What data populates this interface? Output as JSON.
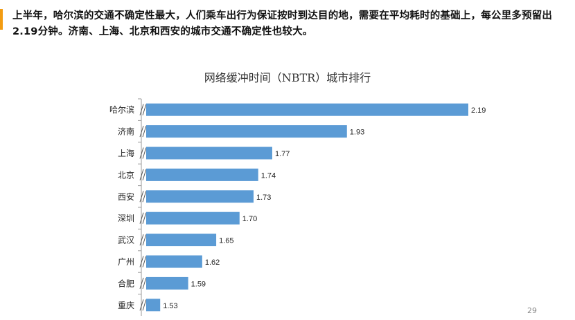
{
  "intro_text": "上半年，哈尔滨的交通不确定性最大，人们乘车出行为保证按时到达目的地，需要在平均耗时的基础上，每公里多预留出2.19分钟。济南、上海、北京和西安的城市交通不确定性也较大。",
  "page_number": "29",
  "colors": {
    "accent": "#f39c12",
    "bar": "#5b9bd5"
  },
  "chart_data": {
    "type": "bar",
    "orientation": "horizontal",
    "title": "网络缓冲时间（NBTR）城市排行",
    "xlabel": "",
    "ylabel": "",
    "axis_break": true,
    "categories": [
      "哈尔滨",
      "济南",
      "上海",
      "北京",
      "西安",
      "深圳",
      "武汉",
      "广州",
      "合肥",
      "重庆"
    ],
    "values": [
      2.19,
      1.93,
      1.77,
      1.74,
      1.73,
      1.7,
      1.65,
      1.62,
      1.59,
      1.53
    ],
    "value_labels": [
      "2.19",
      "1.93",
      "1.77",
      "1.74",
      "1.73",
      "1.70",
      "1.65",
      "1.62",
      "1.59",
      "1.53"
    ]
  }
}
